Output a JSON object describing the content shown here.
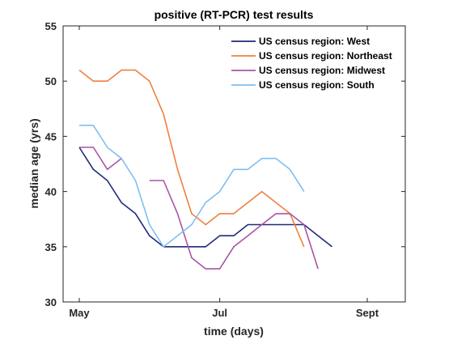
{
  "chart_data": {
    "type": "line",
    "title": "positive (RT-PCR) test results",
    "xlabel": "time (days)",
    "ylabel": "median age (yrs)",
    "xlim": [
      0,
      22
    ],
    "ylim": [
      30,
      55
    ],
    "yticks": [
      30,
      35,
      40,
      45,
      50,
      55
    ],
    "xticks": [
      {
        "x": 0,
        "label": "May"
      },
      {
        "x": 10,
        "label": "Jul"
      },
      {
        "x": 20.5,
        "label": "Sept"
      }
    ],
    "grid": false,
    "legend_position": "top-right",
    "x": [
      0,
      1,
      2,
      3,
      4,
      5,
      6,
      7,
      8,
      9,
      10,
      11,
      12,
      13,
      14,
      15,
      16,
      17,
      18,
      19
    ],
    "series": [
      {
        "name": "US census region: West",
        "color": "#1f2a7a",
        "values": [
          44,
          42,
          41,
          39,
          38,
          36,
          35,
          35,
          35,
          35,
          36,
          36,
          37,
          37,
          37,
          37,
          37,
          36,
          35,
          null
        ]
      },
      {
        "name": "US census region: Northeast",
        "color": "#f07f3f",
        "values": [
          51,
          50,
          50,
          51,
          51,
          50,
          47,
          42,
          38,
          37,
          38,
          38,
          39,
          40,
          39,
          38,
          35,
          null,
          null,
          null
        ]
      },
      {
        "name": "US census region: Midwest",
        "color": "#a954a6",
        "values": [
          44,
          44,
          42,
          43,
          null,
          41,
          41,
          38,
          34,
          33,
          33,
          35,
          36,
          37,
          38,
          38,
          37,
          33,
          null,
          null
        ]
      },
      {
        "name": "US census region: South",
        "color": "#7fbff0",
        "values": [
          46,
          46,
          44,
          43,
          41,
          37,
          35,
          36,
          37,
          39,
          40,
          42,
          42,
          43,
          43,
          42,
          40,
          null,
          null,
          null
        ]
      }
    ],
    "x_series": [
      [
        0,
        1,
        2,
        3,
        4,
        5,
        6,
        7,
        8,
        9,
        10,
        11,
        12,
        13,
        14,
        15,
        16,
        17,
        18,
        19
      ],
      [
        0,
        1,
        2,
        3,
        4,
        5,
        6,
        7,
        8,
        9,
        10,
        11,
        12,
        13,
        14,
        15,
        16,
        17,
        18,
        19
      ],
      [
        0,
        1,
        2,
        3,
        3,
        5,
        6,
        7,
        8,
        9,
        10,
        11,
        12,
        13,
        14,
        15,
        16,
        17,
        18,
        19
      ],
      [
        0,
        1,
        2,
        3,
        4,
        5,
        6,
        7,
        8,
        9,
        10,
        11,
        12,
        13,
        14,
        15,
        16,
        17,
        18,
        19
      ]
    ]
  }
}
